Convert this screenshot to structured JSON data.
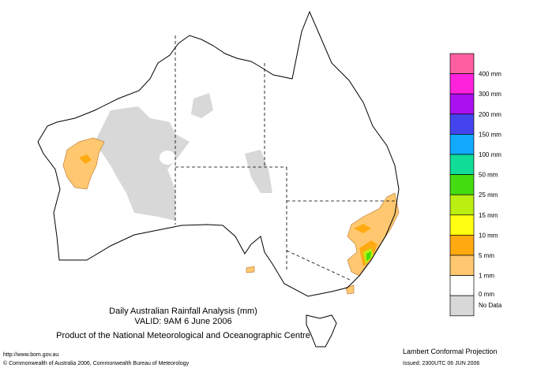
{
  "header": {
    "title": "Daily Australian Rainfall Analysis (mm)",
    "valid": "VALID: 9AM  6 June 2006",
    "product": "Product of the National Meteorological and Oceanographic Centre"
  },
  "footer": {
    "url": "http://www.bom.gov.au",
    "copyright": "© Commonwealth of Australia 2006, Commonwealth Bureau of Meteorology",
    "projection": "Lambert Conformal Projection",
    "issued": "Issued: 2300UTC 06 JUN 2006"
  },
  "legend": {
    "colors": [
      "#ff5fa0",
      "#ff22dd",
      "#aa11ee",
      "#4444ee",
      "#11aaff",
      "#11dd99",
      "#44dd11",
      "#bbee11",
      "#ffff11",
      "#ffaa11",
      "#ffc870",
      "#ffffff",
      "#d8d8d8"
    ],
    "labels": [
      "400 mm",
      "300 mm",
      "200 mm",
      "150 mm",
      "100 mm",
      "50 mm",
      "25 mm",
      "15 mm",
      "10 mm",
      "5 mm",
      "1 mm",
      "0 mm",
      "No Data"
    ]
  }
}
